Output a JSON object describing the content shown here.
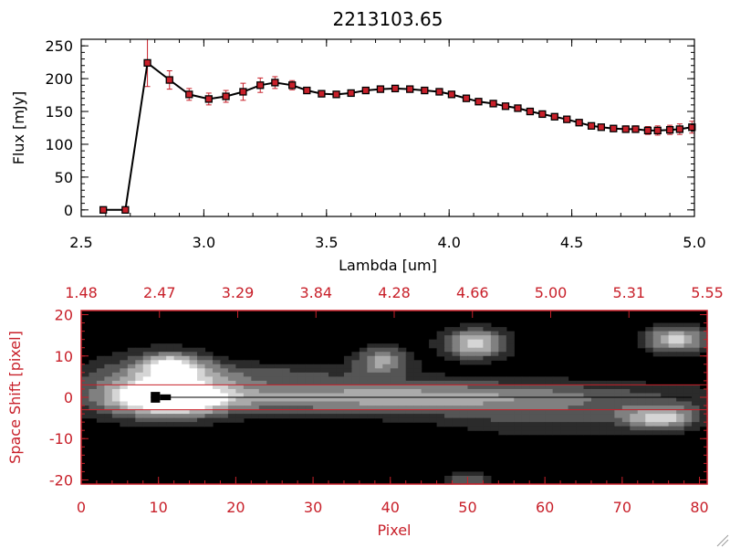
{
  "colors": {
    "accent_red": "#c8202a",
    "axis_black": "#000000",
    "marker_fill": "#c8202a",
    "background": "#ffffff"
  },
  "chart_data": [
    {
      "type": "line",
      "title": "2213103.65",
      "xlabel": "Lambda [um]",
      "ylabel": "Flux [mJy]",
      "xlim": [
        2.5,
        5.0
      ],
      "ylim": [
        -10,
        260
      ],
      "x_ticks": [
        "2.5",
        "3.0",
        "3.5",
        "4.0",
        "4.5",
        "5.0"
      ],
      "y_ticks": [
        "0",
        "50",
        "100",
        "150",
        "200",
        "250"
      ],
      "grid": false,
      "series": [
        {
          "x": [
            2.59,
            2.68,
            2.77,
            2.86,
            2.94,
            3.02,
            3.09,
            3.16,
            3.23,
            3.29,
            3.36,
            3.42,
            3.48,
            3.54,
            3.6,
            3.66,
            3.72,
            3.78,
            3.84,
            3.9,
            3.96,
            4.01,
            4.07,
            4.12,
            4.18,
            4.23,
            4.28,
            4.33,
            4.38,
            4.43,
            4.48,
            4.53,
            4.58,
            4.62,
            4.67,
            4.72,
            4.76,
            4.81,
            4.85,
            4.9,
            4.94,
            4.99
          ],
          "y": [
            0,
            0,
            224,
            198,
            176,
            169,
            173,
            180,
            190,
            194,
            190,
            182,
            177,
            176,
            178,
            182,
            184,
            185,
            184,
            182,
            180,
            176,
            170,
            165,
            162,
            158,
            155,
            150,
            146,
            142,
            138,
            133,
            128,
            126,
            124,
            123,
            123,
            121,
            121,
            122,
            123,
            126
          ],
          "yerr": [
            0,
            0,
            36,
            14,
            9,
            9,
            9,
            13,
            11,
            9,
            7,
            4,
            3,
            3,
            3,
            3,
            3,
            3,
            3,
            3,
            3,
            3,
            3,
            3,
            3,
            3,
            3,
            3,
            3,
            3,
            4,
            4,
            4,
            4,
            4,
            5,
            5,
            6,
            7,
            7,
            8,
            9
          ]
        }
      ]
    },
    {
      "type": "heatmap",
      "xlabel": "Pixel",
      "ylabel": "Space Shift [pixel]",
      "xlim": [
        0,
        81
      ],
      "ylim": [
        -21,
        21
      ],
      "x_ticks": [
        "0",
        "10",
        "20",
        "30",
        "40",
        "50",
        "60",
        "70",
        "80"
      ],
      "y_ticks": [
        "-20",
        "-10",
        "0",
        "10",
        "20"
      ],
      "top_axis_ticks": [
        "1.48",
        "2.47",
        "3.29",
        "3.84",
        "4.28",
        "4.66",
        "5.00",
        "5.31",
        "5.55"
      ],
      "extraction_aperture": [
        -3,
        3
      ],
      "trace_centre": 0,
      "sources": [
        {
          "x": 40,
          "y": 0,
          "sx": 26,
          "sy": 3,
          "amp": 0.7
        },
        {
          "x": 12,
          "y": 0,
          "sx": 5,
          "sy": 3.2,
          "amp": 0.9
        },
        {
          "x": 8,
          "y": 3,
          "sx": 6,
          "sy": 6,
          "amp": 0.35
        },
        {
          "x": 12,
          "y": 8,
          "sx": 3,
          "sy": 2.2,
          "amp": 0.7
        },
        {
          "x": 39,
          "y": 9,
          "sx": 2.5,
          "sy": 2.4,
          "amp": 0.65
        },
        {
          "x": 51,
          "y": 13,
          "sx": 3,
          "sy": 2.6,
          "amp": 0.85
        },
        {
          "x": 20,
          "y": 6,
          "sx": 12,
          "sy": 2,
          "amp": 0.3
        },
        {
          "x": 77,
          "y": 14,
          "sx": 3,
          "sy": 2.4,
          "amp": 0.8
        },
        {
          "x": 75,
          "y": -5,
          "sx": 3.5,
          "sy": 2,
          "amp": 0.75
        },
        {
          "x": 60,
          "y": -6,
          "sx": 10,
          "sy": 3,
          "amp": 0.25
        },
        {
          "x": 50,
          "y": -20,
          "sx": 2,
          "sy": 1.5,
          "amp": 0.5
        }
      ]
    }
  ]
}
